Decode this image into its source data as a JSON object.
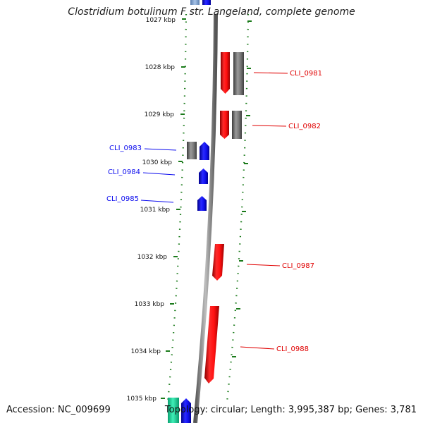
{
  "title": "Clostridium botulinum F str. Langeland, complete genome",
  "footer": {
    "accession": "Accession: NC_009699",
    "summary": "Topology: circular; Length: 3,995,387 bp; Genes: 3,781"
  },
  "colors": {
    "forward_strand": "#e00000",
    "reverse_strand": "#0a0aee",
    "gray_feature": "#6e6e6e",
    "teal_feature": "#22d6a0",
    "tick": "#1a7a1a",
    "backbone": "#808080"
  },
  "scale_labels": [
    "1027 kbp",
    "1028 kbp",
    "1029 kbp",
    "1030 kbp",
    "1031 kbp",
    "1032 kbp",
    "1033 kbp",
    "1034 kbp",
    "1035 kbp"
  ],
  "genes": [
    {
      "id": "CLI_0981",
      "strand": "forward"
    },
    {
      "id": "CLI_0982",
      "strand": "forward"
    },
    {
      "id": "CLI_0983",
      "strand": "reverse"
    },
    {
      "id": "CLI_0984",
      "strand": "reverse"
    },
    {
      "id": "CLI_0985",
      "strand": "reverse"
    },
    {
      "id": "CLI_0987",
      "strand": "forward"
    },
    {
      "id": "CLI_0988",
      "strand": "forward"
    }
  ]
}
